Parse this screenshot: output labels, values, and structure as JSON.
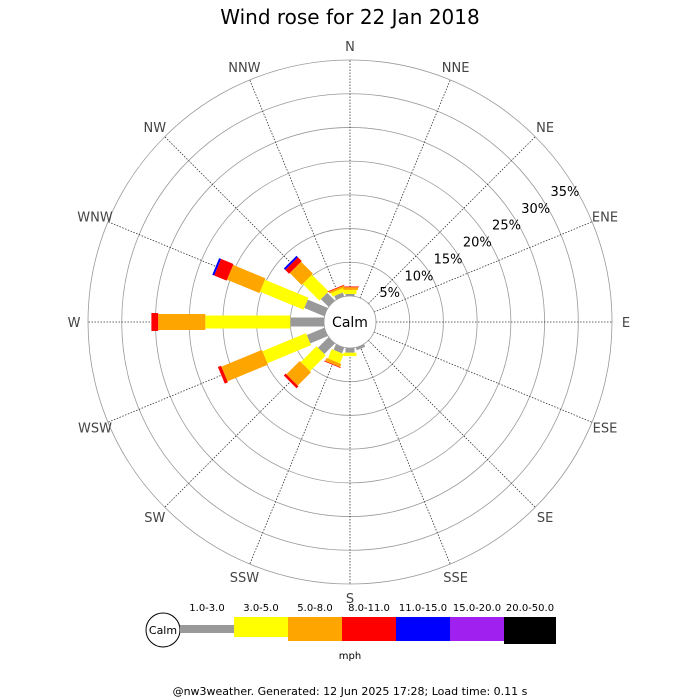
{
  "chart_data": {
    "type": "wind-rose",
    "title": "Wind rose for 22 Jan 2018",
    "directions": [
      "N",
      "NNE",
      "NE",
      "ENE",
      "E",
      "ESE",
      "SE",
      "SSE",
      "S",
      "SSW",
      "SW",
      "WSW",
      "W",
      "WNW",
      "NW",
      "NNW"
    ],
    "ring_labels": [
      "5%",
      "10%",
      "15%",
      "20%",
      "25%",
      "30%",
      "35%"
    ],
    "ring_values": [
      5,
      10,
      15,
      20,
      25,
      30,
      35
    ],
    "max_percent": 35,
    "calm_label": "Calm",
    "unit": "mph",
    "speed_bins": [
      {
        "label": "1.0-3.0",
        "color": "#999999"
      },
      {
        "label": "3.0-5.0",
        "color": "#ffff00"
      },
      {
        "label": "5.0-8.0",
        "color": "#ffa500"
      },
      {
        "label": "8.0-11.0",
        "color": "#ff0000"
      },
      {
        "label": "11.0-15.0",
        "color": "#0000ff"
      },
      {
        "label": "15.0-20.0",
        "color": "#a020f0"
      },
      {
        "label": "20.0-50.0",
        "color": "#000000"
      }
    ],
    "series": [
      {
        "direction": "N",
        "values": [
          0.3,
          0.6,
          0.4,
          0.1,
          0,
          0,
          0
        ]
      },
      {
        "direction": "NNE",
        "values": [
          0,
          0,
          0,
          0,
          0,
          0,
          0
        ]
      },
      {
        "direction": "NE",
        "values": [
          0,
          0,
          0,
          0,
          0,
          0,
          0
        ]
      },
      {
        "direction": "ENE",
        "values": [
          0,
          0,
          0,
          0,
          0,
          0,
          0
        ]
      },
      {
        "direction": "E",
        "values": [
          0,
          0,
          0,
          0,
          0,
          0,
          0
        ]
      },
      {
        "direction": "ESE",
        "values": [
          0,
          0,
          0,
          0,
          0,
          0,
          0
        ]
      },
      {
        "direction": "SE",
        "values": [
          0,
          0,
          0,
          0,
          0,
          0,
          0
        ]
      },
      {
        "direction": "SSE",
        "values": [
          0.4,
          0,
          0,
          0,
          0,
          0,
          0
        ]
      },
      {
        "direction": "S",
        "values": [
          0.7,
          0.5,
          0,
          0,
          0,
          0,
          0
        ]
      },
      {
        "direction": "SSW",
        "values": [
          0.9,
          1.5,
          0.5,
          0.1,
          0,
          0,
          0
        ]
      },
      {
        "direction": "SW",
        "values": [
          2.2,
          3.3,
          2.8,
          0.4,
          0,
          0,
          0
        ]
      },
      {
        "direction": "WSW",
        "values": [
          2.8,
          7.0,
          6.5,
          0.5,
          0,
          0,
          0
        ]
      },
      {
        "direction": "W",
        "values": [
          5.0,
          12.6,
          7.0,
          1.0,
          0,
          0,
          0
        ]
      },
      {
        "direction": "WNW",
        "values": [
          3.2,
          7.0,
          5.2,
          2.0,
          0.3,
          0,
          0
        ]
      },
      {
        "direction": "NW",
        "values": [
          1.6,
          3.5,
          2.5,
          0.8,
          0.3,
          0,
          0
        ]
      },
      {
        "direction": "NNW",
        "values": [
          0.6,
          0.6,
          0.3,
          0.1,
          0,
          0,
          0
        ]
      }
    ],
    "legend_placement": "bottom"
  },
  "footer": "@nw3weather. Generated: 12 Jun 2025 17:28; Load time: 0.11 s"
}
